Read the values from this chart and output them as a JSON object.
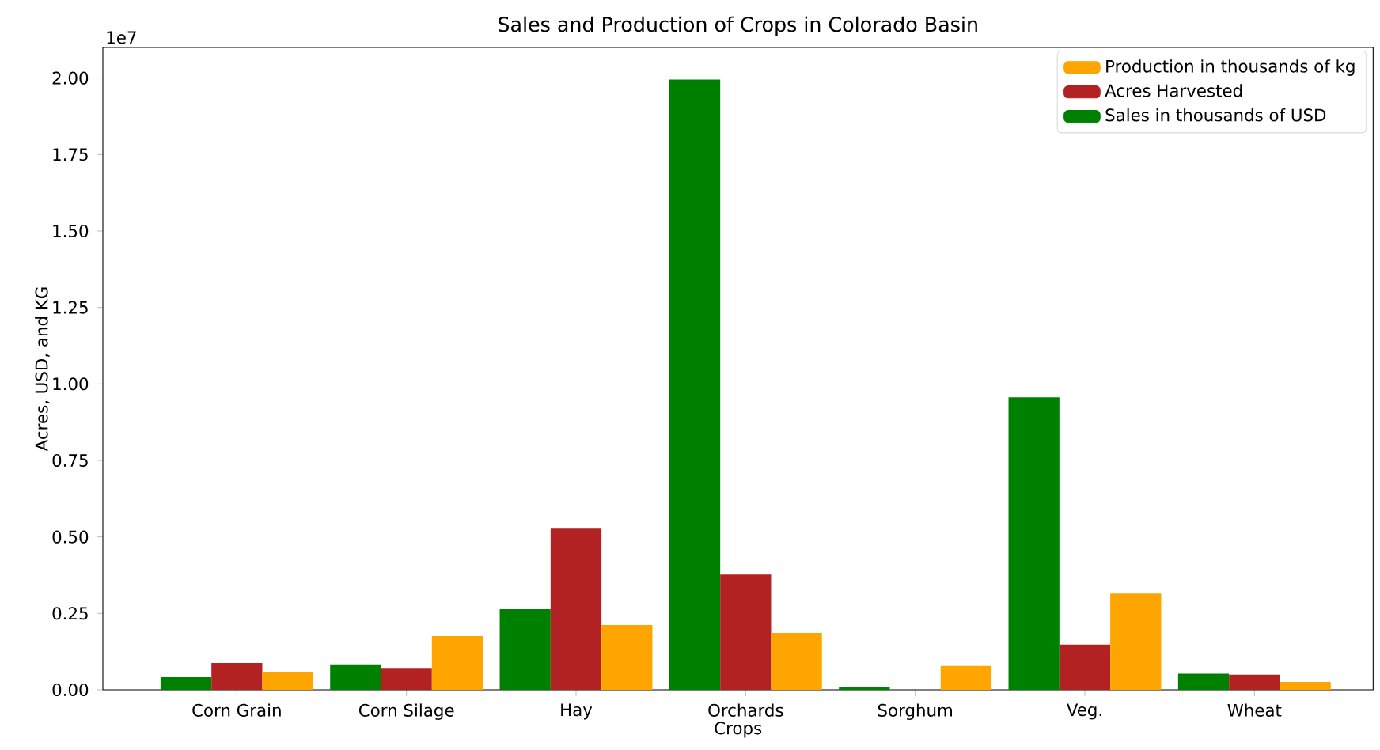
{
  "chart_data": {
    "type": "bar",
    "title": "Sales and Production of Crops in Colorado Basin",
    "xlabel": "Crops",
    "ylabel": "Acres, USD, and KG",
    "categories": [
      "Corn Grain",
      "Corn Silage",
      "Hay",
      "Orchards",
      "Sorghum",
      "Veg.",
      "Wheat"
    ],
    "series": [
      {
        "name": "Sales in thousands of USD",
        "color": "#008000",
        "values": [
          0.041,
          0.083,
          0.264,
          1.995,
          0.008,
          0.956,
          0.053
        ]
      },
      {
        "name": "Acres Harvested",
        "color": "#b22222",
        "values": [
          0.088,
          0.072,
          0.527,
          0.377,
          0,
          0.148,
          0.05
        ]
      },
      {
        "name": "Production in thousands of kg",
        "color": "#ffa500",
        "values": [
          0.057,
          0.176,
          0.212,
          0.186,
          0.078,
          0.315,
          0.026
        ]
      }
    ],
    "ylim": [
      0,
      2.1
    ],
    "yticks": [
      {
        "value": 0,
        "label": "0.00"
      },
      0.25,
      {
        "value": 0.5,
        "label": "0.50"
      },
      0.75,
      {
        "value": 1,
        "label": "1.00"
      },
      1.25,
      {
        "value": 1.5,
        "label": "1.50"
      },
      1.75,
      {
        "value": 2,
        "label": "2.00"
      }
    ],
    "annotations": [
      "1e7"
    ],
    "legend": "top right",
    "grid": false
  }
}
